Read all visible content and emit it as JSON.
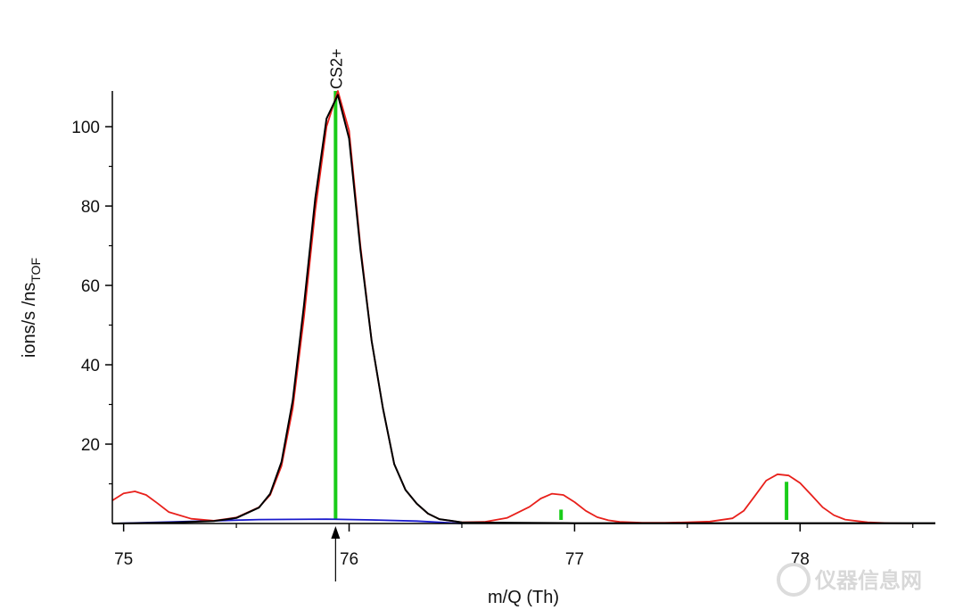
{
  "chart_data": {
    "type": "line",
    "xlabel": "m/Q (Th)",
    "ylabel": "ions/s /ns",
    "ylabel_subscript": "TOF",
    "xlim": [
      74.95,
      78.6
    ],
    "ylim": [
      0,
      109
    ],
    "xticks": [
      75,
      76,
      77,
      78
    ],
    "yticks": [
      20,
      40,
      60,
      80,
      100
    ],
    "grid": false,
    "legend": "none",
    "annotations": [
      {
        "text": "CS2+",
        "x": 75.94
      }
    ],
    "marker_arrow_x": 75.94,
    "colors": {
      "measured": "#e8201b",
      "fit": "#000000",
      "baseline": "#1a1acc",
      "sticks": "#19cc19"
    },
    "series": [
      {
        "key": "measured",
        "x": [
          74.95,
          75.0,
          75.05,
          75.1,
          75.15,
          75.2,
          75.3,
          75.4,
          75.5,
          75.6,
          75.65,
          75.7,
          75.75,
          75.8,
          75.85,
          75.9,
          75.95,
          76.0,
          76.05,
          76.1,
          76.15,
          76.2,
          76.25,
          76.3,
          76.35,
          76.4,
          76.5,
          76.6,
          76.7,
          76.8,
          76.85,
          76.9,
          76.95,
          77.0,
          77.05,
          77.1,
          77.15,
          77.2,
          77.3,
          77.4,
          77.5,
          77.6,
          77.7,
          77.75,
          77.8,
          77.85,
          77.9,
          77.95,
          78.0,
          78.05,
          78.1,
          78.15,
          78.2,
          78.3,
          78.4,
          78.5
        ],
        "y": [
          5.8,
          7.6,
          8.1,
          7.2,
          5.1,
          2.9,
          1.2,
          0.7,
          1.5,
          4.1,
          7.2,
          14.5,
          29.0,
          52.0,
          79.0,
          100.0,
          109.0,
          99.0,
          70.0,
          46.0,
          29.0,
          15.0,
          8.5,
          5.0,
          2.5,
          1.1,
          0.3,
          0.4,
          1.4,
          4.2,
          6.3,
          7.5,
          7.2,
          5.4,
          3.2,
          1.6,
          0.8,
          0.4,
          0.2,
          0.2,
          0.3,
          0.5,
          1.3,
          3.2,
          7.0,
          10.8,
          12.4,
          12.1,
          10.2,
          7.2,
          4.1,
          2.1,
          1.0,
          0.3,
          0.1,
          0.0
        ]
      },
      {
        "key": "fit",
        "x": [
          74.95,
          75.2,
          75.4,
          75.5,
          75.6,
          75.65,
          75.7,
          75.75,
          75.8,
          75.85,
          75.9,
          75.95,
          76.0,
          76.05,
          76.1,
          76.15,
          76.2,
          76.25,
          76.3,
          76.35,
          76.4,
          76.5,
          76.7,
          77.0,
          77.5,
          78.0,
          78.6
        ],
        "y": [
          0.0,
          0.2,
          0.6,
          1.4,
          4.0,
          7.5,
          15.5,
          31.0,
          55.0,
          82.0,
          102.0,
          108.0,
          97.0,
          69.0,
          46.0,
          29.0,
          15.0,
          8.5,
          5.0,
          2.5,
          1.1,
          0.3,
          0.2,
          0.1,
          0.1,
          0.1,
          0.1
        ]
      },
      {
        "key": "baseline",
        "x": [
          74.95,
          75.6,
          75.9,
          76.1,
          76.3,
          76.5
        ],
        "y": [
          0.0,
          1.0,
          1.1,
          0.9,
          0.6,
          0.0
        ]
      }
    ],
    "sticks": [
      {
        "x": 75.94,
        "y": 109.0
      },
      {
        "x": 76.94,
        "y": 3.5
      },
      {
        "x": 77.94,
        "y": 10.5
      }
    ]
  },
  "watermark": {
    "text": "仪器信息网"
  }
}
